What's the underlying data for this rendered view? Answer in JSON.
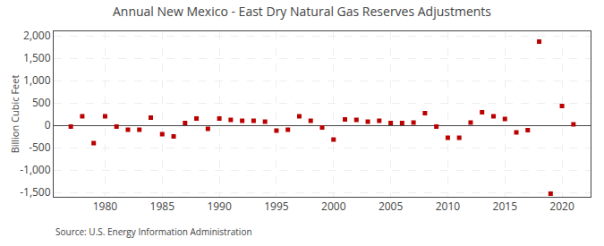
{
  "chart_data": {
    "type": "scatter",
    "title": "Annual New Mexico - East Dry Natural Gas Reserves Adjustments",
    "y_label": "Billion Cubic Feet",
    "annotations": [
      "Source: U.S. Energy Information Administration"
    ],
    "x": [
      1977,
      1978,
      1979,
      1980,
      1981,
      1982,
      1983,
      1984,
      1985,
      1986,
      1987,
      1988,
      1989,
      1990,
      1991,
      1992,
      1993,
      1994,
      1995,
      1996,
      1997,
      1998,
      1999,
      2000,
      2001,
      2002,
      2003,
      2004,
      2005,
      2006,
      2007,
      2008,
      2009,
      2010,
      2011,
      2012,
      2013,
      2014,
      2015,
      2016,
      2017,
      2018,
      2019,
      2020,
      2021
    ],
    "values": [
      -30,
      200,
      -400,
      200,
      -30,
      -100,
      -100,
      170,
      -200,
      -250,
      50,
      150,
      -80,
      150,
      120,
      100,
      100,
      80,
      -120,
      -100,
      200,
      100,
      -50,
      -320,
      130,
      120,
      80,
      100,
      50,
      50,
      60,
      270,
      -30,
      -280,
      -280,
      60,
      290,
      200,
      140,
      -160,
      -110,
      1870,
      -1530,
      430,
      20
    ],
    "color": "#bb0000",
    "marker": "square",
    "grid": true,
    "xlim": [
      1975.5,
      2022.5
    ],
    "xticks": [
      1980,
      1985,
      1990,
      1995,
      2000,
      2005,
      2010,
      2015,
      2020
    ],
    "ylim": [
      -1600,
      2100
    ],
    "yticks": [
      {
        "value": -1500,
        "label": "-1,500"
      },
      {
        "value": -1000,
        "label": "-1,000"
      },
      -500,
      0,
      500,
      {
        "value": 1000,
        "label": "1,000"
      },
      {
        "value": 1500,
        "label": "1,500"
      },
      {
        "value": 2000,
        "label": "2,000"
      }
    ]
  }
}
